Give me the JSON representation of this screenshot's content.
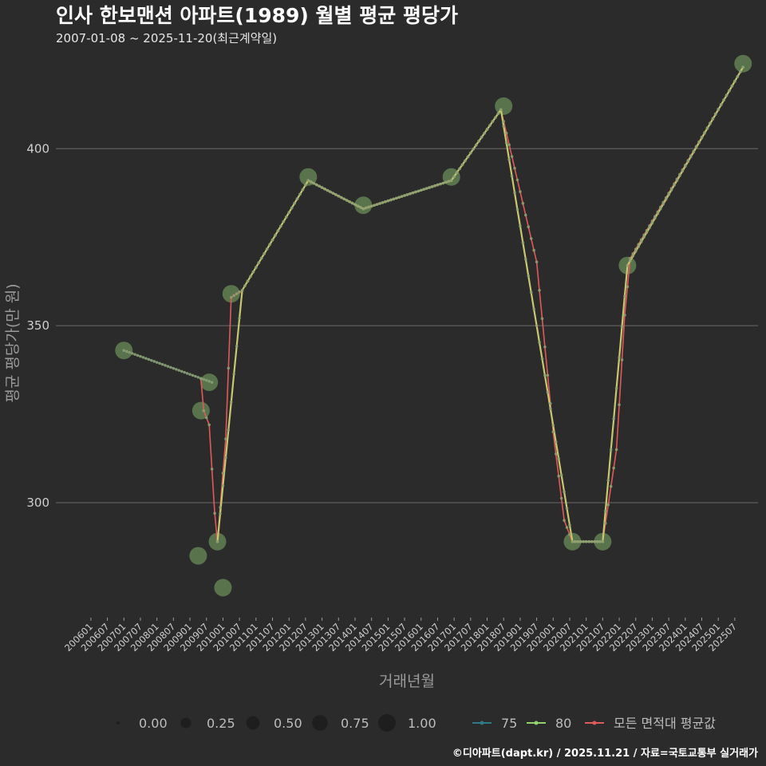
{
  "colors": {
    "background": "#2b2b2b",
    "grid": "#6a6a6a",
    "series_75": "#2e7a86",
    "series_80": "#c9c770",
    "series_80_legend": "#8fd36a",
    "series_all": "#e05a5a",
    "bubble": "#7fb069"
  },
  "chart_data": {
    "type": "line",
    "title": "인사 한보맨션 아파트(1989) 월별 평균 평당가",
    "subtitle": "2007-01-08 ~ 2025-11-20(최근계약일)",
    "xlabel": "거래년월",
    "ylabel": "평균 평당가(만 원)",
    "ylim": [
      268,
      428
    ],
    "yticks": [
      300,
      350,
      400
    ],
    "x_ticks": [
      "200601",
      "200607",
      "200701",
      "200707",
      "200801",
      "200807",
      "200901",
      "200907",
      "201001",
      "201007",
      "201101",
      "201107",
      "201201",
      "201207",
      "201301",
      "201307",
      "201401",
      "201407",
      "201501",
      "201507",
      "201601",
      "201607",
      "201701",
      "201707",
      "201801",
      "201807",
      "201901",
      "201907",
      "202001",
      "202007",
      "202101",
      "202107",
      "202201",
      "202207",
      "202301",
      "202307",
      "202401",
      "202407",
      "202501",
      "202507"
    ],
    "series": [
      {
        "name": "75",
        "points": [
          [
            "200701",
            343
          ],
          [
            "200909",
            334
          ]
        ]
      },
      {
        "name": "80",
        "points": [
          [
            "200911",
            289
          ],
          [
            "201008",
            360
          ],
          [
            "201208",
            391
          ],
          [
            "201404",
            383
          ],
          [
            "201612",
            391
          ],
          [
            "201806",
            411
          ],
          [
            "202008",
            289
          ],
          [
            "202107",
            289
          ],
          [
            "202204",
            367
          ],
          [
            "202510",
            423
          ]
        ]
      },
      {
        "name": "모든 면적대 평균값",
        "points": [
          [
            "200905",
            335
          ],
          [
            "200906",
            326
          ],
          [
            "200908",
            322
          ],
          [
            "200910",
            297
          ],
          [
            "200911",
            289
          ],
          [
            "201002",
            318
          ],
          [
            "201004",
            358
          ],
          [
            "201008",
            360
          ],
          [
            "201208",
            391
          ],
          [
            "201404",
            383
          ],
          [
            "201612",
            391
          ],
          [
            "201806",
            411
          ],
          [
            "201907",
            368
          ],
          [
            "202001",
            320
          ],
          [
            "202005",
            295
          ],
          [
            "202008",
            289
          ],
          [
            "202107",
            289
          ],
          [
            "202112",
            315
          ],
          [
            "202203",
            353
          ],
          [
            "202205",
            369
          ],
          [
            "202510",
            423
          ]
        ]
      }
    ],
    "bubbles": [
      {
        "x": "200701",
        "y": 343,
        "size": 1.0
      },
      {
        "x": "200908",
        "y": 334,
        "size": 1.0
      },
      {
        "x": "200905",
        "y": 326,
        "size": 1.0
      },
      {
        "x": "200904",
        "y": 285,
        "size": 1.0
      },
      {
        "x": "200911",
        "y": 289,
        "size": 1.0
      },
      {
        "x": "201001",
        "y": 276,
        "size": 1.0
      },
      {
        "x": "201004",
        "y": 359,
        "size": 1.0
      },
      {
        "x": "201208",
        "y": 392,
        "size": 1.0
      },
      {
        "x": "201404",
        "y": 384,
        "size": 1.0
      },
      {
        "x": "201612",
        "y": 392,
        "size": 1.0
      },
      {
        "x": "201807",
        "y": 412,
        "size": 1.0
      },
      {
        "x": "202008",
        "y": 289,
        "size": 1.0
      },
      {
        "x": "202107",
        "y": 289,
        "size": 1.0
      },
      {
        "x": "202204",
        "y": 367,
        "size": 1.0
      },
      {
        "x": "202510",
        "y": 424,
        "size": 1.0
      }
    ],
    "legend": {
      "size_title": "",
      "sizes": [
        {
          "label": "0.00",
          "size": 0.0
        },
        {
          "label": "0.25",
          "size": 0.25
        },
        {
          "label": "0.50",
          "size": 0.5
        },
        {
          "label": "0.75",
          "size": 0.75
        },
        {
          "label": "1.00",
          "size": 1.0
        }
      ],
      "lines": [
        {
          "label": "75",
          "color_key": "series_75"
        },
        {
          "label": "80",
          "color_key": "series_80_legend"
        },
        {
          "label": "모든 면적대 평균값",
          "color_key": "series_all"
        }
      ]
    }
  },
  "caption": "©디아파트(dapt.kr) / 2025.11.21 / 자료=국토교통부 실거래가"
}
